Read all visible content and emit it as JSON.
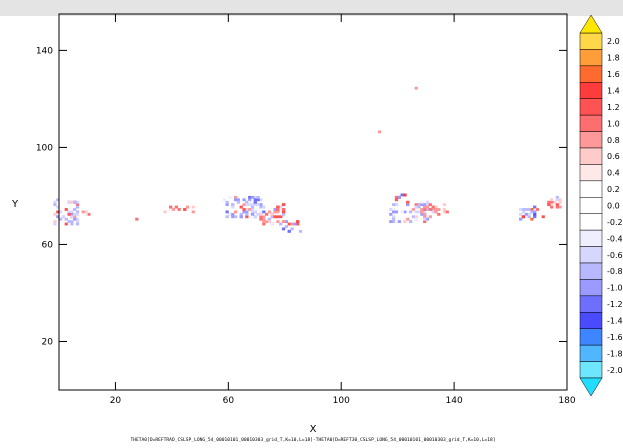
{
  "chart_data": {
    "type": "heatmap",
    "xlabel": "X",
    "ylabel": "Y",
    "xlim": [
      0,
      180
    ],
    "ylim": [
      0,
      155
    ],
    "x_ticks": [
      20,
      60,
      100,
      140,
      180
    ],
    "y_ticks": [
      20,
      60,
      100,
      140
    ],
    "grid": false,
    "colorbar": {
      "levels": [
        "2.0",
        "1.8",
        "1.6",
        "1.4",
        "1.2",
        "1.0",
        "0.8",
        "0.6",
        "0.4",
        "0.2",
        "0.0",
        "-0.2",
        "-0.4",
        "-0.6",
        "-0.8",
        "-1.0",
        "-1.2",
        "-1.4",
        "-1.6",
        "-1.8",
        "-2.0"
      ],
      "colors": [
        "#ffd84a",
        "#ff9e38",
        "#ff6a2e",
        "#ff3c3c",
        "#ff5252",
        "#ff6e6e",
        "#ff9898",
        "#ffcaca",
        "#ffe8e8",
        "#ffffff",
        "#ffffff",
        "#ffffff",
        "#eeeeff",
        "#d6d6ff",
        "#b8b8ff",
        "#9a9aff",
        "#6f6fff",
        "#4a4aff",
        "#3d86ff",
        "#4fb6ff",
        "#6fe6ff"
      ],
      "top_cap_color": "#ffe600",
      "bottom_cap_color": "#22ddff"
    },
    "clusters": [
      {
        "x": 2,
        "y": 73,
        "w": 9,
        "h": 10,
        "v": -1.0
      },
      {
        "x": 9,
        "y": 72,
        "w": 2,
        "h": 3,
        "v": 0.9
      },
      {
        "x": 26.5,
        "y": 70,
        "w": 1,
        "h": 1,
        "v": 0.8
      },
      {
        "x": 42,
        "y": 74,
        "w": 10,
        "h": 2,
        "v": 0.9
      },
      {
        "x": 65,
        "y": 75,
        "w": 14,
        "h": 9,
        "v": -1.1
      },
      {
        "x": 75,
        "y": 72,
        "w": 9,
        "h": 8,
        "v": 1.0
      },
      {
        "x": 82,
        "y": 67,
        "w": 6,
        "h": 4,
        "v": -1.3
      },
      {
        "x": 113,
        "y": 106,
        "w": 1,
        "h": 1,
        "v": 1.0
      },
      {
        "x": 126,
        "y": 124,
        "w": 1,
        "h": 1,
        "v": 1.2
      },
      {
        "x": 121,
        "y": 79,
        "w": 4,
        "h": 4,
        "v": 1.2
      },
      {
        "x": 124,
        "y": 73,
        "w": 14,
        "h": 8,
        "v": -1.0
      },
      {
        "x": 133,
        "y": 74,
        "w": 10,
        "h": 4,
        "v": 0.8
      },
      {
        "x": 166,
        "y": 72,
        "w": 6,
        "h": 6,
        "v": -1.3
      },
      {
        "x": 170,
        "y": 71,
        "w": 2,
        "h": 1,
        "v": 1.8
      },
      {
        "x": 175,
        "y": 77,
        "w": 6,
        "h": 4,
        "v": 0.9
      }
    ],
    "footer": "THETA0[D=REFTRAD_CSLSP_LONG_54_00010101_00010303_grid_T,K=10,L=18]-THETA0[D=REFT30_CSLSP_LONG_54_00010101_00010303_grid_T,K=10,L=18]"
  }
}
